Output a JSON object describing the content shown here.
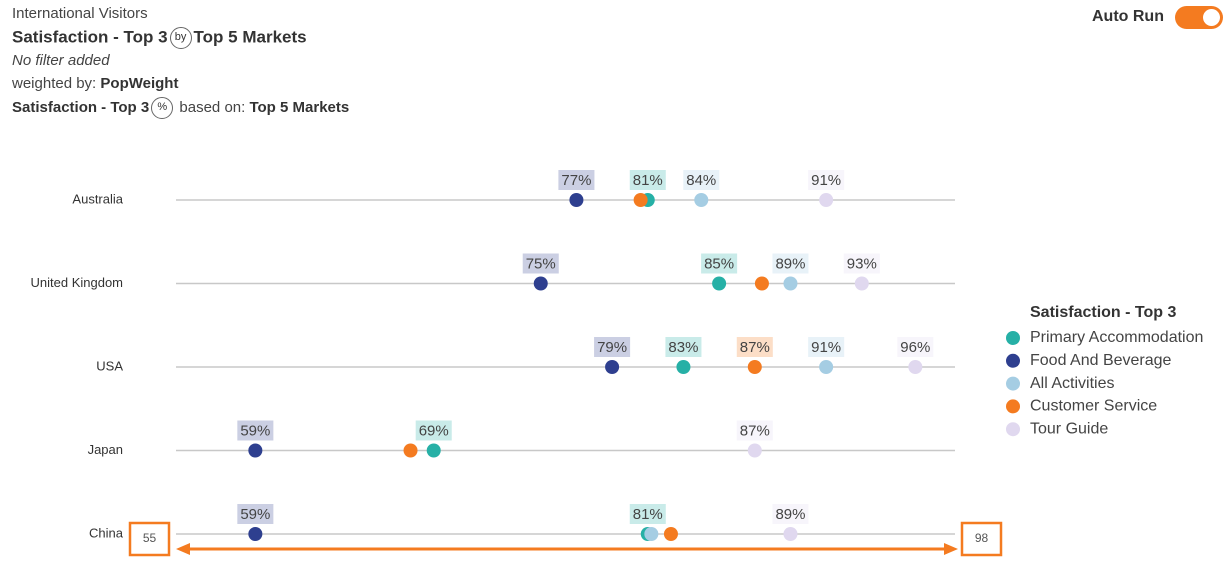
{
  "header": {
    "source": "International Visitors",
    "measure": "Satisfaction - Top 3",
    "by_icon": "by",
    "banner": "Top 5 Markets",
    "filter": "No filter added",
    "weighted_label": "weighted by:",
    "weight": "PopWeight",
    "stat_measure": "Satisfaction - Top 3",
    "pct_icon": "%",
    "based_label": "based on:",
    "based": "Top 5 Markets"
  },
  "toggle": {
    "label": "Auto Run",
    "on": true
  },
  "chart_data": {
    "type": "dot",
    "categories": [
      "Australia",
      "United Kingdom",
      "USA",
      "Japan",
      "China"
    ],
    "legend_title": "Satisfaction - Top 3",
    "series": [
      {
        "name": "Primary Accommodation",
        "color": "#26b0a6",
        "values": [
          81,
          85,
          83,
          69,
          81
        ],
        "value_labels": [
          "81%",
          "85%",
          "83%",
          "69%",
          "81%"
        ]
      },
      {
        "name": "Food And Beverage",
        "color": "#2e3f8f",
        "values": [
          77,
          75,
          79,
          59,
          59
        ],
        "value_labels": [
          "77%",
          "75%",
          "79%",
          "59%",
          "59%"
        ]
      },
      {
        "name": "All Activities",
        "color": "#a5cde3",
        "values": [
          84,
          89,
          91,
          null,
          81.2
        ],
        "value_labels": [
          "84%",
          "89%",
          "91%",
          null,
          null
        ]
      },
      {
        "name": "Customer Service",
        "color": "#f47b20",
        "values": [
          80.6,
          87.4,
          87,
          67.7,
          82.3
        ],
        "value_labels": [
          null,
          null,
          "87%",
          null,
          null
        ]
      },
      {
        "name": "Tour Guide",
        "color": "#e0d8ef",
        "values": [
          91,
          93,
          96,
          87,
          89
        ],
        "value_labels": [
          "91%",
          "93%",
          "96%",
          "87%",
          "89%"
        ]
      }
    ],
    "xlim": [
      55,
      98
    ],
    "xticks": [
      55,
      98
    ]
  }
}
